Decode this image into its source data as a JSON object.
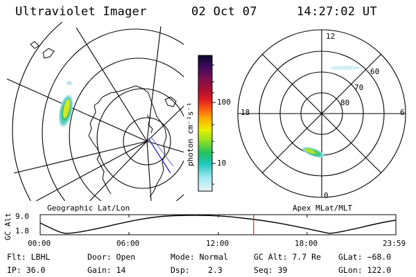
{
  "header": {
    "instrument": "Ultraviolet Imager",
    "date": "02 Oct 07",
    "time": "14:27:02 UT"
  },
  "left_panel": {
    "label": "Geographic Lat/Lon"
  },
  "colorbar": {
    "unit_label": "photon cm⁻²s⁻¹",
    "ticks": [
      "100",
      "10"
    ],
    "colors_top_to_bottom": [
      "#0a0a2a",
      "#3a0a5a",
      "#7a1050",
      "#b01030",
      "#e02020",
      "#ff6010",
      "#ffb000",
      "#e8f000",
      "#90e020",
      "#20c060",
      "#20c8c0",
      "#a0e8f0",
      "#e8f4f8"
    ]
  },
  "right_panel": {
    "label": "Apex MLat/MLT",
    "mlt_labels": {
      "top": "12",
      "left": "18",
      "right": "6",
      "bottom": "0"
    },
    "lat_labels": [
      "60",
      "70",
      "80"
    ]
  },
  "gc_alt_plot": {
    "ylabel": "GC Alt",
    "y_ticks": [
      "9.0",
      "1.8"
    ],
    "x_ticks": [
      "00:00",
      "06:00",
      "12:00",
      "18:00",
      "23:59"
    ],
    "current_time_marker_fraction": 0.6
  },
  "info": {
    "flt": "Flt: LBHL",
    "door": "Door: Open",
    "mode": "Mode: Normal",
    "gc_alt": "GC Alt: 7.7 Re",
    "glat": "GLat: −68.0",
    "ip": "IP: 36.0",
    "gain": "Gain: 14",
    "dsp_label": "Dsp:",
    "dsp_value": "2.3",
    "seq": "Seq: 39",
    "glon": "GLon: 122.0"
  },
  "colors": {
    "time_marker": "#d02020",
    "grid": "#000000"
  }
}
